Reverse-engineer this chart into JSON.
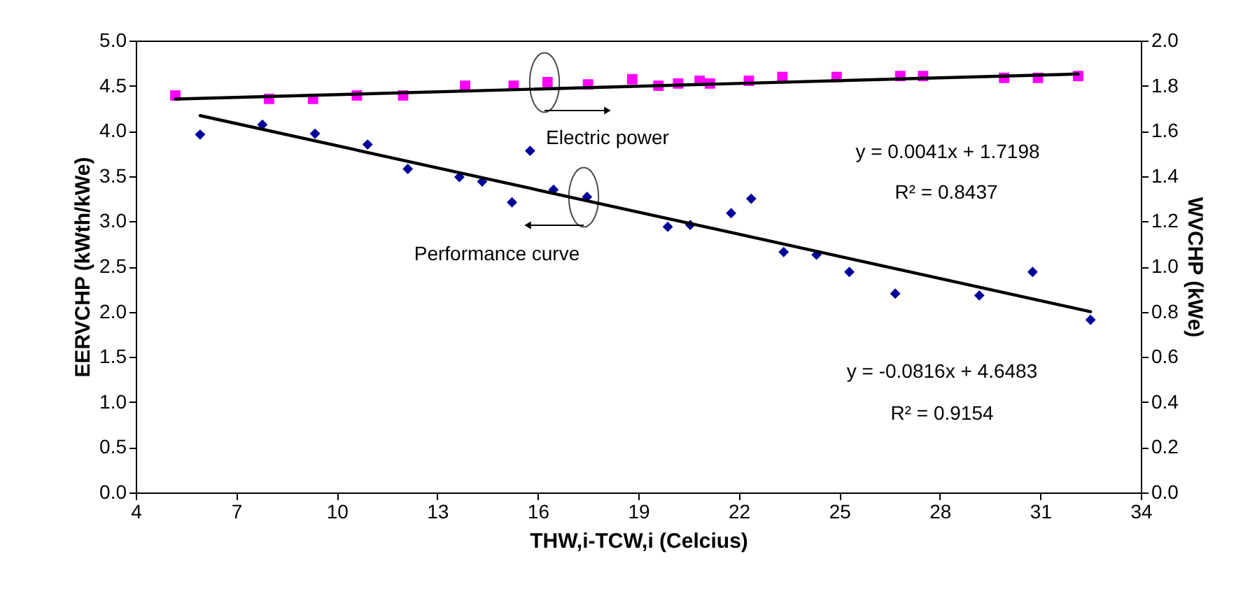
{
  "chart_data": {
    "type": "scatter",
    "xlabel": "THW,i-TCW,i (Celcius)",
    "ylabel": "EERVCHP (kWth/kWe)",
    "y2label": "WVCHP (kWe)",
    "xlim": [
      4,
      34
    ],
    "xticks": [
      4,
      7,
      10,
      13,
      16,
      19,
      22,
      25,
      28,
      31,
      34
    ],
    "ylim": [
      0,
      5
    ],
    "yticks": [
      {
        "value": 0,
        "label": "0.0"
      },
      {
        "value": 0.5,
        "label": "0.5"
      },
      {
        "value": 1,
        "label": "1.0"
      },
      {
        "value": 1.5,
        "label": "1.5"
      },
      {
        "value": 2,
        "label": "2.0"
      },
      {
        "value": 2.5,
        "label": "2.5"
      },
      {
        "value": 3,
        "label": "3.0"
      },
      {
        "value": 3.5,
        "label": "3.5"
      },
      {
        "value": 4,
        "label": "4.0"
      },
      {
        "value": 4.5,
        "label": "4.5"
      },
      {
        "value": 5,
        "label": "5.0"
      }
    ],
    "y2lim": [
      0,
      2
    ],
    "y2ticks": [
      {
        "value": 0,
        "label": "0.0"
      },
      {
        "value": 0.2,
        "label": "0.2"
      },
      {
        "value": 0.4,
        "label": "0.4"
      },
      {
        "value": 0.6,
        "label": "0.6"
      },
      {
        "value": 0.8,
        "label": "0.8"
      },
      {
        "value": 1,
        "label": "1.0"
      },
      {
        "value": 1.2,
        "label": "1.2"
      },
      {
        "value": 1.4,
        "label": "1.4"
      },
      {
        "value": 1.6,
        "label": "1.6"
      },
      {
        "value": 1.8,
        "label": "1.8"
      },
      {
        "value": 2,
        "label": "2.0"
      }
    ],
    "grid": false,
    "series": [
      {
        "marker": "diamond",
        "color": "#000099",
        "x": [
          5.92,
          7.78,
          9.35,
          10.92,
          12.12,
          13.66,
          14.34,
          15.23,
          15.77,
          16.47,
          17.47,
          19.88,
          20.55,
          21.77,
          22.37,
          23.34,
          24.32,
          25.3,
          26.67,
          29.18,
          30.77,
          32.5
        ],
        "values": [
          3.96,
          4.07,
          3.97,
          3.85,
          3.58,
          3.49,
          3.44,
          3.21,
          3.78,
          3.35,
          3.27,
          2.94,
          2.96,
          3.09,
          3.25,
          2.66,
          2.63,
          2.44,
          2.2,
          2.18,
          2.44,
          1.91
        ]
      },
      {
        "marker": "square",
        "color": "#ff00ff",
        "axis": "y2",
        "x": [
          5.18,
          7.98,
          9.29,
          10.6,
          11.98,
          13.83,
          15.28,
          16.29,
          17.5,
          18.82,
          19.6,
          20.19,
          20.83,
          21.14,
          22.3,
          23.3,
          24.92,
          26.82,
          27.5,
          29.92,
          30.93,
          32.13
        ],
        "values": [
          1.757,
          1.742,
          1.742,
          1.757,
          1.757,
          1.8,
          1.8,
          1.816,
          1.806,
          1.829,
          1.8,
          1.81,
          1.822,
          1.81,
          1.822,
          1.839,
          1.839,
          1.843,
          1.843,
          1.835,
          1.835,
          1.843
        ]
      },
      {
        "type": "line",
        "line_style": "solid",
        "color": "#000000",
        "x": [
          5.92,
          32.5
        ],
        "values": [
          4.17,
          2.0
        ]
      },
      {
        "type": "line",
        "line_style": "solid",
        "color": "#000000",
        "axis": "y2",
        "x": [
          5.18,
          32.13
        ],
        "values": [
          1.741,
          1.852
        ]
      }
    ],
    "annotations": [
      "Electric power",
      "Performance curve",
      "y = 0.0041x + 1.7198",
      "R² = 0.8437",
      "y = -0.0816x + 4.6483",
      "R² = 0.9154"
    ]
  }
}
